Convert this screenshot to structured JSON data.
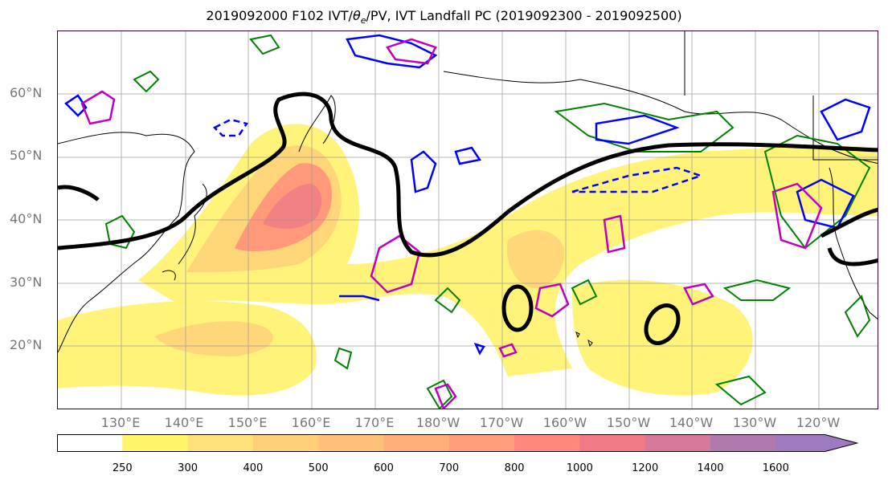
{
  "title": "2019092000 F102 IVT/θe/PV, IVT Landfall PC (2019092300 - 2019092500)",
  "title_parts": {
    "pre": "2019092000 F102 IVT/",
    "theta": "θ",
    "sub": "e",
    "post": "/PV, IVT Landfall PC (2019092300 - 2019092500)"
  },
  "lat_labels": [
    "60°N",
    "50°N",
    "40°N",
    "30°N",
    "20°N"
  ],
  "lon_labels": [
    "130°E",
    "140°E",
    "150°E",
    "160°E",
    "170°E",
    "180°W",
    "170°W",
    "160°W",
    "150°W",
    "140°W",
    "130°W",
    "120°W"
  ],
  "colorbar": {
    "levels": [
      "250",
      "300",
      "400",
      "500",
      "600",
      "700",
      "800",
      "1000",
      "1200",
      "1400",
      "1600"
    ],
    "colors": [
      "#ffffff",
      "#fff56a",
      "#ffe07a",
      "#ffcf7a",
      "#ffc07a",
      "#ffb07a",
      "#ff9e7a",
      "#ff8a7a",
      "#f07a86",
      "#d57a9a",
      "#b07aae",
      "#9f7ac0"
    ]
  },
  "contour_colors": {
    "ivt_fill_low": "#fff36a",
    "theta_e": "#008000",
    "pv_positive": "#0000ff",
    "pv_anomaly": "#c000c0",
    "landfall_pc": "#000000"
  }
}
